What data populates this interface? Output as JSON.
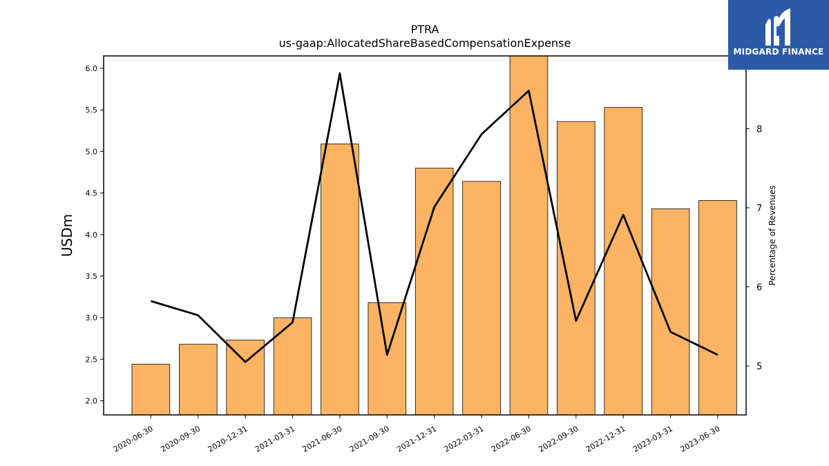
{
  "logo": {
    "text": "MIDGARD FINANCE"
  },
  "chart_data": {
    "type": "bar",
    "title": "PTRA",
    "subtitle": "us-gaap:AllocatedShareBasedCompensationExpense",
    "ylabel": "USDm",
    "y2label": "Percentage of Revenues",
    "categories": [
      "2020-06-30",
      "2020-09-30",
      "2020-12-31",
      "2021-03-31",
      "2021-06-30",
      "2021-09-30",
      "2021-12-31",
      "2022-03-31",
      "2022-06-30",
      "2022-09-30",
      "2022-12-31",
      "2023-03-31",
      "2023-06-30"
    ],
    "series": [
      {
        "axis": "left",
        "kind": "bar",
        "color": "#fdb462",
        "values": [
          2.44,
          2.68,
          2.73,
          3.0,
          5.09,
          3.18,
          4.8,
          4.64,
          6.15,
          5.36,
          5.53,
          4.31,
          4.41
        ]
      },
      {
        "axis": "right",
        "kind": "line",
        "color": "#000000",
        "values": [
          5.82,
          5.64,
          5.05,
          5.55,
          8.7,
          5.14,
          7.01,
          7.93,
          8.48,
          5.57,
          6.91,
          5.43,
          5.14
        ]
      }
    ],
    "ylim": [
      1.83,
      6.15
    ],
    "yticks": [
      "2.0",
      "2.5",
      "3.0",
      "3.5",
      "4.0",
      "4.5",
      "5.0",
      "5.5",
      "6.0"
    ],
    "y2lim": [
      4.38,
      8.92
    ],
    "y2ticks": [
      "5",
      "6",
      "7",
      "8"
    ],
    "grid": false,
    "legend": "none"
  }
}
